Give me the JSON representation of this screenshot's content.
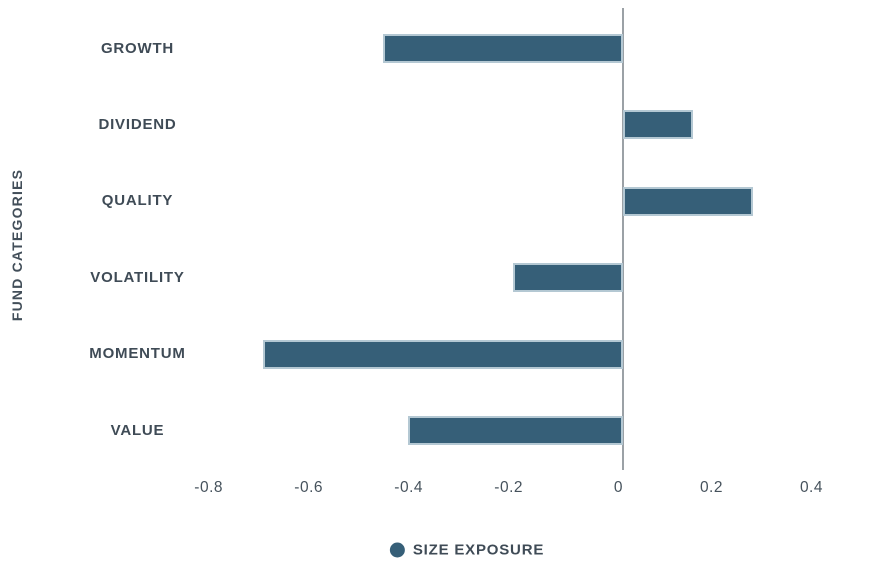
{
  "chart_data": {
    "type": "bar",
    "orientation": "horizontal",
    "title": "",
    "xlabel": "",
    "ylabel": "FUND CATEGORIES",
    "categories": [
      "GROWTH",
      "DIVIDEND",
      "QUALITY",
      "VOLATILITY",
      "MOMENTUM",
      "VALUE"
    ],
    "series": [
      {
        "name": "SIZE EXPOSURE",
        "values": [
          -0.48,
          0.14,
          0.26,
          -0.22,
          -0.72,
          -0.43
        ]
      }
    ],
    "x_ticks": [
      -0.8,
      -0.6,
      -0.4,
      -0.2,
      0,
      0.2,
      0.4
    ],
    "x_tick_labels": [
      "-0.8",
      "-0.6",
      "-0.4",
      "-0.2",
      "0",
      "0.2",
      "0.4"
    ],
    "xlim": [
      -0.9,
      0.5
    ],
    "grid": false,
    "legend": {
      "label": "SIZE EXPOSURE",
      "position": "bottom"
    },
    "colors": {
      "bar_fill": "#365f78",
      "bar_edge": "#b4c8d3",
      "zero_axis_line": "#9ba1a6",
      "text": "#3f4b56",
      "background": "#ffffff"
    }
  }
}
